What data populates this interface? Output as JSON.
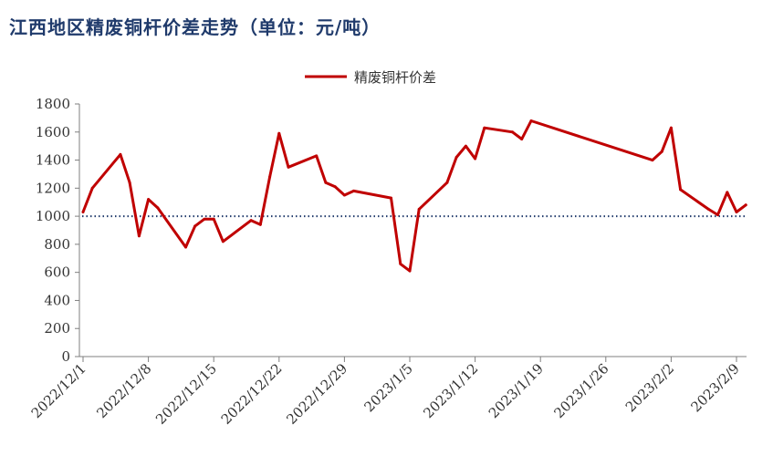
{
  "title": "江西地区精废铜杆价差走势（单位：元/吨）",
  "chart_data": {
    "type": "line",
    "title": "江西地区精废铜杆价差走势（单位：元/吨）",
    "xlabel": "",
    "ylabel": "",
    "ylim": [
      0,
      1800
    ],
    "yticks": [
      0,
      200,
      400,
      600,
      800,
      1000,
      1200,
      1400,
      1600,
      1800
    ],
    "xticks": [
      "2022/12/1",
      "2022/12/8",
      "2022/12/15",
      "2022/12/22",
      "2022/12/29",
      "2023/1/5",
      "2023/1/12",
      "2023/1/19",
      "2023/1/26",
      "2023/2/2",
      "2023/2/9"
    ],
    "grid": false,
    "legend": "top-center",
    "reference_line": 1000,
    "colors": {
      "series": "#c00000",
      "reference": "#1f3a6b",
      "title": "#1f3a6b"
    },
    "series": [
      {
        "name": "精废铜杆价差",
        "x": [
          "2022/12/1",
          "2022/12/2",
          "2022/12/5",
          "2022/12/6",
          "2022/12/7",
          "2022/12/8",
          "2022/12/9",
          "2022/12/12",
          "2022/12/13",
          "2022/12/14",
          "2022/12/15",
          "2022/12/16",
          "2022/12/19",
          "2022/12/20",
          "2022/12/21",
          "2022/12/22",
          "2022/12/23",
          "2022/12/26",
          "2022/12/27",
          "2022/12/28",
          "2022/12/29",
          "2022/12/30",
          "2023/1/3",
          "2023/1/4",
          "2023/1/5",
          "2023/1/6",
          "2023/1/9",
          "2023/1/10",
          "2023/1/11",
          "2023/1/12",
          "2023/1/13",
          "2023/1/16",
          "2023/1/17",
          "2023/1/18",
          "2023/1/31",
          "2023/2/1",
          "2023/2/2",
          "2023/2/3",
          "2023/2/6",
          "2023/2/7",
          "2023/2/8",
          "2023/2/9",
          "2023/2/10"
        ],
        "values": [
          1030,
          1200,
          1440,
          1240,
          860,
          1120,
          1060,
          780,
          930,
          980,
          980,
          820,
          970,
          940,
          1280,
          1590,
          1350,
          1430,
          1240,
          1210,
          1150,
          1180,
          1130,
          660,
          610,
          1050,
          1240,
          1420,
          1500,
          1410,
          1630,
          1600,
          1550,
          1680,
          1400,
          1460,
          1630,
          1190,
          1050,
          1010,
          1170,
          1030,
          1080
        ]
      }
    ]
  }
}
